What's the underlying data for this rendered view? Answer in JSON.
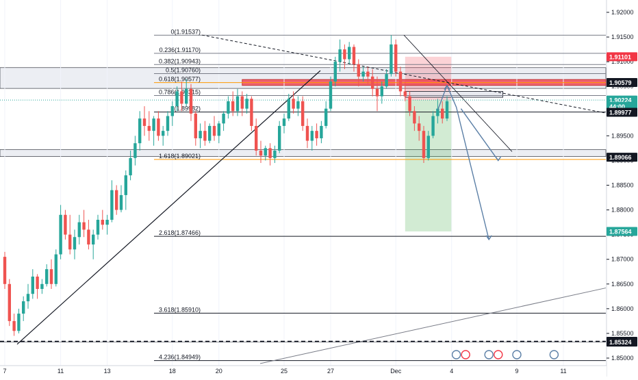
{
  "chart_data": {
    "type": "candlestick",
    "instrument": "GBPNZD",
    "price_axis": {
      "range": [
        1.8465,
        1.9232
      ],
      "ticks": [
        "1.92000",
        "1.91500",
        "1.91000",
        "1.90500",
        "1.90000",
        "1.89500",
        "1.89000",
        "1.88500",
        "1.88000",
        "1.87500",
        "1.87000",
        "1.86500",
        "1.86000",
        "1.85500",
        "1.85000"
      ]
    },
    "date_axis": {
      "ticks": [
        {
          "label": "7",
          "bar": 0
        },
        {
          "label": "11",
          "bar": 12
        },
        {
          "label": "13",
          "bar": 22
        },
        {
          "label": "18",
          "bar": 36
        },
        {
          "label": "20",
          "bar": 46
        },
        {
          "label": "25",
          "bar": 60
        },
        {
          "label": "27",
          "bar": 70
        },
        {
          "label": "Dec",
          "bar": 84
        },
        {
          "label": "4",
          "bar": 96
        },
        {
          "label": "9",
          "bar": 110
        },
        {
          "label": "11",
          "bar": 120
        }
      ]
    },
    "price_tags": [
      {
        "label": "1.91101",
        "price": 1.91101,
        "bg": "#f23645",
        "fg": "#ffffff"
      },
      {
        "label": "1.90579",
        "price": 1.90579,
        "bg": "#131722",
        "fg": "#ffffff"
      },
      {
        "label": "1.90224",
        "price": 1.90224,
        "bg": "#26a69a",
        "fg": "#ffffff"
      },
      {
        "label": "44:00",
        "price": 1.90095,
        "bg": "#26a69a",
        "fg": "#ffffff"
      },
      {
        "label": "1.89977",
        "price": 1.89977,
        "bg": "#131722",
        "fg": "#ffffff"
      },
      {
        "label": "1.89066",
        "price": 1.89066,
        "bg": "#131722",
        "fg": "#ffffff"
      },
      {
        "label": "1.87564",
        "price": 1.87564,
        "bg": "#26a69a",
        "fg": "#ffffff"
      },
      {
        "label": "1.85339",
        "price": 1.85339,
        "bg": "#131722",
        "fg": "#ffffff"
      },
      {
        "label": "1.85324",
        "price": 1.85324,
        "bg": "#131722",
        "fg": "#ffffff"
      }
    ],
    "fibonacci": [
      {
        "label": "0(1.91537)",
        "price": 1.91537,
        "color": "#787b86"
      },
      {
        "label": "0.236(1.91170)",
        "price": 1.9117,
        "color": "#787b86"
      },
      {
        "label": "0.382(1.90943)",
        "price": 1.90943,
        "color": "#787b86"
      },
      {
        "label": "0.5(1.90760)",
        "price": 1.9076,
        "color": "#787b86"
      },
      {
        "label": "0.618(1.90577)",
        "price": 1.90577,
        "color": "#ff9800"
      },
      {
        "label": "0.786(1.90315)",
        "price": 1.90315,
        "color": "#787b86"
      },
      {
        "label": "1(1.89982)",
        "price": 1.89982,
        "color": "#131722"
      },
      {
        "label": "1.618(1.89021)",
        "price": 1.89021,
        "color": "#ff9800"
      },
      {
        "label": "2.618(1.87466)",
        "price": 1.87466,
        "color": "#131722"
      },
      {
        "label": "3.618(1.85910)",
        "price": 1.8591,
        "color": "#131722"
      },
      {
        "label": "4.236(1.84949)",
        "price": 1.84949,
        "color": "#131722"
      }
    ],
    "candles": [
      [
        1.8705,
        1.8715,
        1.864,
        1.865
      ],
      [
        1.865,
        1.866,
        1.8565,
        1.8575
      ],
      [
        1.8575,
        1.859,
        1.8545,
        1.8555
      ],
      [
        1.8555,
        1.86,
        1.855,
        1.859
      ],
      [
        1.859,
        1.8625,
        1.8575,
        1.8615
      ],
      [
        1.8615,
        1.865,
        1.86,
        1.863
      ],
      [
        1.863,
        1.868,
        1.862,
        1.8665
      ],
      [
        1.8665,
        1.867,
        1.862,
        1.864
      ],
      [
        1.864,
        1.866,
        1.863,
        1.865
      ],
      [
        1.865,
        1.869,
        1.8645,
        1.868
      ],
      [
        1.868,
        1.87,
        1.864,
        1.865
      ],
      [
        1.865,
        1.872,
        1.8645,
        1.871
      ],
      [
        1.871,
        1.881,
        1.87,
        1.879
      ],
      [
        1.879,
        1.88,
        1.874,
        1.875
      ],
      [
        1.875,
        1.879,
        1.871,
        1.872
      ],
      [
        1.872,
        1.876,
        1.87,
        1.8745
      ],
      [
        1.8745,
        1.879,
        1.873,
        1.8775
      ],
      [
        1.8775,
        1.88,
        1.8745,
        1.876
      ],
      [
        1.876,
        1.878,
        1.872,
        1.873
      ],
      [
        1.873,
        1.876,
        1.87,
        1.875
      ],
      [
        1.875,
        1.879,
        1.874,
        1.878
      ],
      [
        1.878,
        1.88,
        1.876,
        1.877
      ],
      [
        1.877,
        1.879,
        1.875,
        1.878
      ],
      [
        1.878,
        1.886,
        1.8775,
        1.884
      ],
      [
        1.884,
        1.885,
        1.879,
        1.88
      ],
      [
        1.88,
        1.885,
        1.8795,
        1.883
      ],
      [
        1.883,
        1.888,
        1.88,
        1.887
      ],
      [
        1.887,
        1.892,
        1.886,
        1.8905
      ],
      [
        1.8905,
        1.895,
        1.889,
        1.8935
      ],
      [
        1.8935,
        1.9,
        1.892,
        1.8985
      ],
      [
        1.8985,
        1.901,
        1.895,
        1.897
      ],
      [
        1.897,
        1.9,
        1.894,
        1.896
      ],
      [
        1.896,
        1.899,
        1.893,
        1.8985
      ],
      [
        1.8985,
        1.9,
        1.894,
        1.895
      ],
      [
        1.895,
        1.897,
        1.893,
        1.896
      ],
      [
        1.896,
        1.9,
        1.895,
        1.899
      ],
      [
        1.899,
        1.902,
        1.897,
        1.901
      ],
      [
        1.901,
        1.905,
        1.9,
        1.904
      ],
      [
        1.904,
        1.906,
        1.9,
        1.9015
      ],
      [
        1.9015,
        1.9065,
        1.901,
        1.9045
      ],
      [
        1.9045,
        1.9055,
        1.898,
        1.8995
      ],
      [
        1.8995,
        1.9,
        1.893,
        1.8945
      ],
      [
        1.8945,
        1.8975,
        1.8925,
        1.896
      ],
      [
        1.896,
        1.898,
        1.893,
        1.894
      ],
      [
        1.894,
        1.8975,
        1.8935,
        1.897
      ],
      [
        1.897,
        1.899,
        1.894,
        1.895
      ],
      [
        1.895,
        1.898,
        1.8935,
        1.8975
      ],
      [
        1.8975,
        1.9,
        1.896,
        1.8995
      ],
      [
        1.8995,
        1.903,
        1.8985,
        1.902
      ],
      [
        1.902,
        1.904,
        1.899,
        1.9
      ],
      [
        1.9,
        1.9045,
        1.899,
        1.903
      ],
      [
        1.903,
        1.904,
        1.899,
        1.9005
      ],
      [
        1.9005,
        1.9035,
        1.8995,
        1.9025
      ],
      [
        1.9025,
        1.903,
        1.896,
        1.897
      ],
      [
        1.897,
        1.8985,
        1.891,
        1.892
      ],
      [
        1.892,
        1.894,
        1.8895,
        1.891
      ],
      [
        1.891,
        1.893,
        1.89,
        1.8925
      ],
      [
        1.8925,
        1.8935,
        1.889,
        1.8905
      ],
      [
        1.8905,
        1.893,
        1.8895,
        1.892
      ],
      [
        1.892,
        1.898,
        1.8915,
        1.897
      ],
      [
        1.897,
        1.8995,
        1.8955,
        1.8985
      ],
      [
        1.8985,
        1.9035,
        1.898,
        1.9025
      ],
      [
        1.9025,
        1.904,
        1.8995,
        1.9005
      ],
      [
        1.9005,
        1.903,
        1.899,
        1.902
      ],
      [
        1.902,
        1.903,
        1.896,
        1.897
      ],
      [
        1.897,
        1.8985,
        1.8925,
        1.894
      ],
      [
        1.894,
        1.897,
        1.892,
        1.896
      ],
      [
        1.896,
        1.8975,
        1.893,
        1.8945
      ],
      [
        1.8945,
        1.898,
        1.8935,
        1.897
      ],
      [
        1.897,
        1.902,
        1.8965,
        1.9005
      ],
      [
        1.9005,
        1.907,
        1.9,
        1.906
      ],
      [
        1.906,
        1.911,
        1.905,
        1.91
      ],
      [
        1.91,
        1.9145,
        1.908,
        1.9125
      ],
      [
        1.9125,
        1.9135,
        1.9085,
        1.9105
      ],
      [
        1.9105,
        1.914,
        1.9095,
        1.913
      ],
      [
        1.913,
        1.9135,
        1.908,
        1.9095
      ],
      [
        1.9095,
        1.9105,
        1.905,
        1.907
      ],
      [
        1.907,
        1.909,
        1.906,
        1.908
      ],
      [
        1.908,
        1.909,
        1.9055,
        1.907
      ],
      [
        1.907,
        1.9085,
        1.903,
        1.9045
      ],
      [
        1.9045,
        1.907,
        1.9,
        1.903
      ],
      [
        1.903,
        1.906,
        1.9015,
        1.905
      ],
      [
        1.905,
        1.9085,
        1.9045,
        1.9075
      ],
      [
        1.9075,
        1.9154,
        1.907,
        1.9135
      ],
      [
        1.9135,
        1.9145,
        1.907,
        1.908
      ],
      [
        1.908,
        1.909,
        1.903,
        1.904
      ],
      [
        1.904,
        1.906,
        1.902,
        1.903
      ],
      [
        1.903,
        1.904,
        1.899,
        1.9
      ],
      [
        1.9,
        1.901,
        1.896,
        1.8975
      ],
      [
        1.8975,
        1.899,
        1.894,
        1.896
      ],
      [
        1.896,
        1.897,
        1.8895,
        1.8905
      ],
      [
        1.8905,
        1.896,
        1.89,
        1.895
      ],
      [
        1.895,
        1.9,
        1.8945,
        1.899
      ],
      [
        1.899,
        1.9025,
        1.8975,
        1.9005
      ],
      [
        1.9005,
        1.902,
        1.8975,
        1.8985
      ],
      [
        1.8985,
        1.903,
        1.898,
        1.902
      ]
    ],
    "overlays": {
      "gray_zones": [
        [
          1.9046,
          1.9088
        ],
        [
          1.8908,
          1.8922
        ]
      ],
      "red_zone": [
        1.9052,
        1.9064
      ],
      "risk_box": {
        "from_bar": 86,
        "to_bar": 96,
        "entry": 1.90224,
        "stop": 1.91101,
        "target": 1.87564
      }
    }
  }
}
